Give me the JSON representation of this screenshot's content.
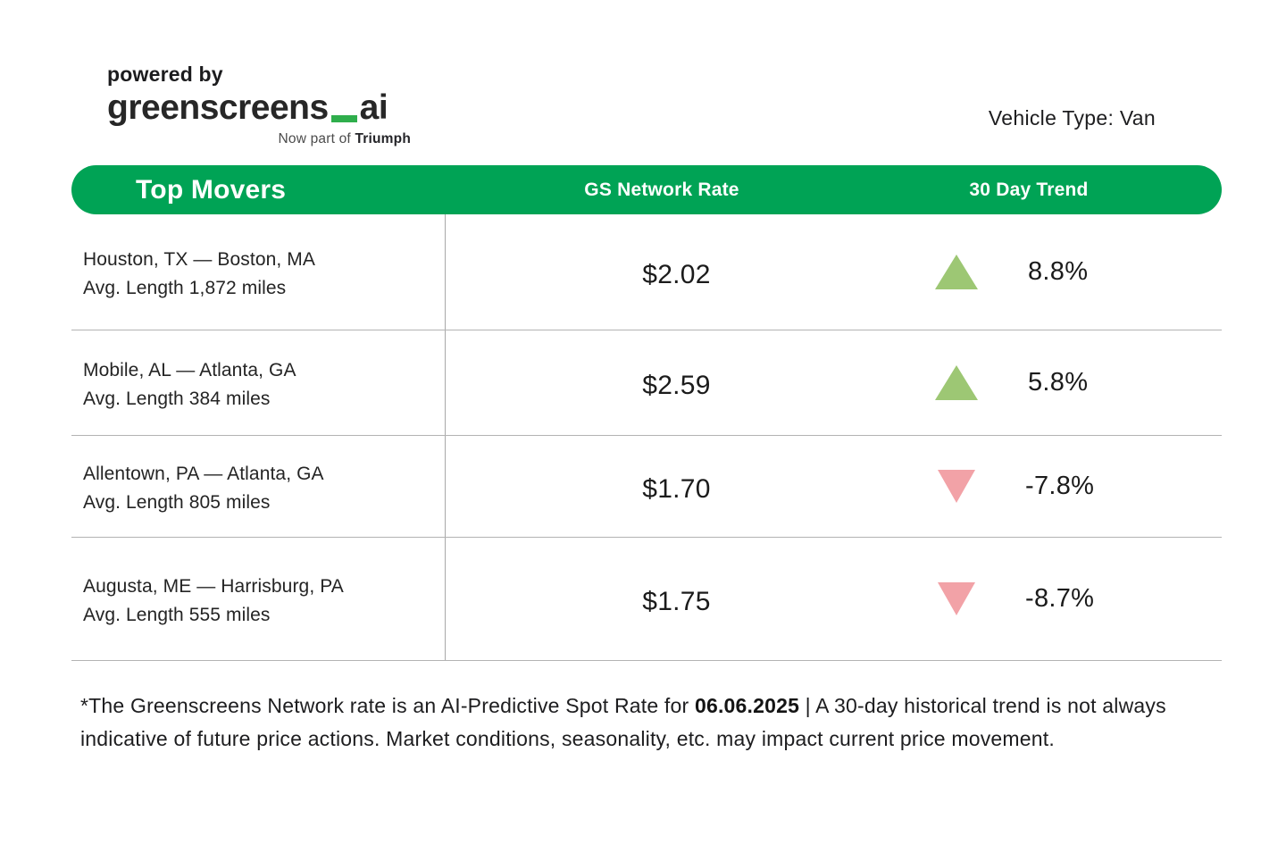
{
  "branding": {
    "powered_by": "powered by",
    "logo_main": "greenscreens",
    "logo_suffix": "ai",
    "tagline_prefix": "Now part of ",
    "tagline_brand": "Triumph"
  },
  "vehicle_type_label": "Vehicle Type: Van",
  "table": {
    "header": {
      "col1": "Top Movers",
      "col2": "GS Network Rate",
      "col3": "30 Day Trend"
    },
    "rows": [
      {
        "lane": "Houston, TX — Boston, MA",
        "avg_length": "Avg. Length 1,872 miles",
        "rate": "$2.02",
        "trend_pct": "8.8%",
        "direction": "up"
      },
      {
        "lane": "Mobile, AL — Atlanta, GA",
        "avg_length": "Avg. Length 384 miles",
        "rate": "$2.59",
        "trend_pct": "5.8%",
        "direction": "up"
      },
      {
        "lane": "Allentown, PA — Atlanta, GA",
        "avg_length": "Avg. Length  805 miles",
        "rate": "$1.70",
        "trend_pct": "-7.8%",
        "direction": "down"
      },
      {
        "lane": "Augusta, ME — Harrisburg, PA",
        "avg_length": "Avg. Length 555 miles",
        "rate": "$1.75",
        "trend_pct": "-8.7%",
        "direction": "down"
      }
    ]
  },
  "footnote": {
    "before_date": "*The Greenscreens Network rate is an AI-Predictive Spot Rate for ",
    "date": "06.06.2025",
    "after_date": " | A 30-day historical trend is not always indicative of future price actions. Market conditions, seasonality, etc. may impact current price movement."
  },
  "colors": {
    "header_green": "#00a355",
    "logo_underscore_green": "#2fae4c",
    "up_triangle": "#9dc774",
    "down_triangle": "#f2a2a7",
    "divider_gray": "#b3b3b3"
  }
}
